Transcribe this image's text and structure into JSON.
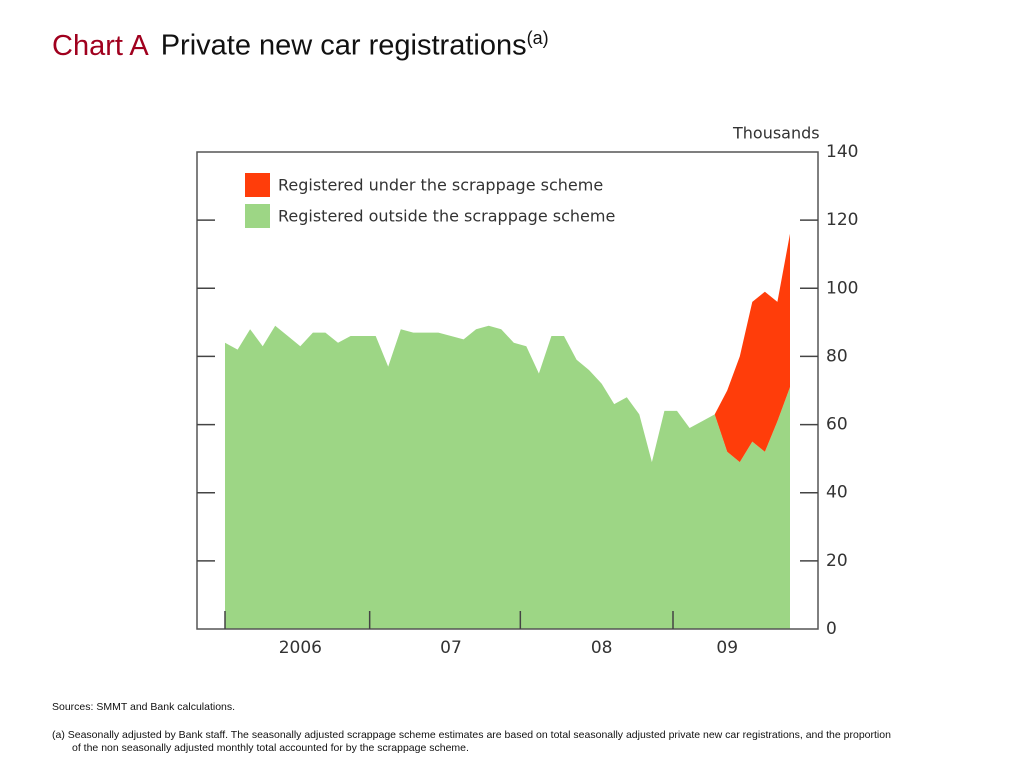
{
  "chart_data": {
    "type": "area",
    "stacked": true,
    "title_prefix": "Chart A",
    "title": "Private new car registrations",
    "title_note": "(a)",
    "y_unit": "Thousands",
    "categories": [
      null,
      null,
      null,
      null,
      null,
      null,
      "2006",
      null,
      null,
      null,
      null,
      null,
      null,
      null,
      null,
      null,
      null,
      null,
      "07",
      null,
      null,
      null,
      null,
      null,
      null,
      null,
      null,
      null,
      null,
      null,
      "08",
      null,
      null,
      null,
      null,
      null,
      null,
      null,
      null,
      null,
      "09",
      null,
      null,
      null,
      null,
      null
    ],
    "series": [
      {
        "name": "Registered outside the scrappage scheme",
        "color": "#9dd685",
        "values": [
          84,
          82,
          88,
          83,
          89,
          86,
          83,
          87,
          87,
          84,
          86,
          86,
          86,
          77,
          88,
          87,
          87,
          87,
          86,
          85,
          88,
          89,
          88,
          84,
          83,
          75,
          86,
          86,
          79,
          76,
          72,
          66,
          68,
          63,
          49,
          64,
          64,
          59,
          61,
          63,
          52,
          49,
          55,
          52,
          61,
          71
        ]
      },
      {
        "name": "Registered under the scrappage scheme",
        "color": "#ff3d0a",
        "values": [
          null,
          null,
          null,
          null,
          null,
          null,
          null,
          null,
          null,
          null,
          null,
          null,
          null,
          null,
          null,
          null,
          null,
          null,
          null,
          null,
          null,
          null,
          null,
          null,
          null,
          null,
          null,
          null,
          null,
          null,
          null,
          null,
          null,
          null,
          null,
          null,
          null,
          null,
          null,
          0,
          18,
          31,
          41,
          47,
          35,
          45
        ]
      }
    ],
    "ylim": [
      0,
      140
    ],
    "yticks": [
      0,
      20,
      40,
      60,
      80,
      100,
      120,
      140
    ],
    "year_boundaries": true
  },
  "sources": "Sources:  SMMT and Bank calculations.",
  "footnote": [
    "(a)  Seasonally adjusted by Bank staff.  The seasonally adjusted scrappage scheme estimates are based on total seasonally adjusted private new car registrations, and the proportion",
    "of the non seasonally adjusted monthly total accounted for by the scrappage scheme."
  ]
}
